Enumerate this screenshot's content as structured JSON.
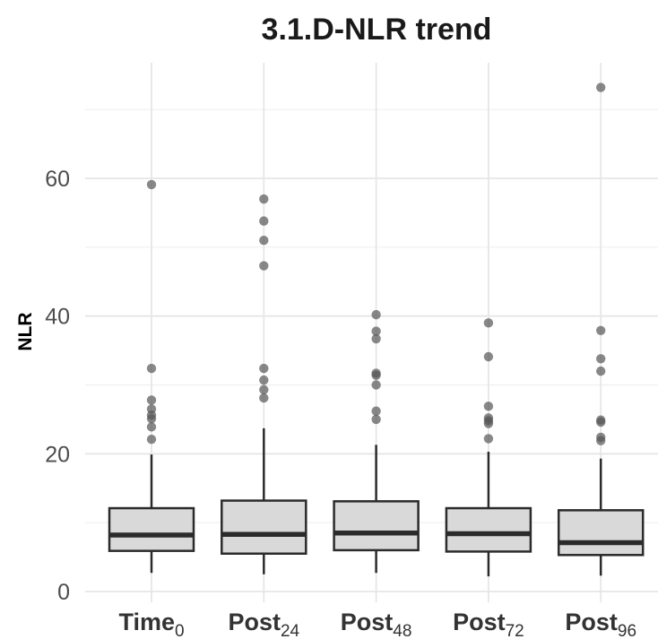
{
  "chart_data": {
    "type": "box",
    "title": "3.1.D-NLR trend",
    "xlabel": "",
    "ylabel": "NLR",
    "ylim": [
      -0.5,
      76
    ],
    "yticks": [
      0,
      20,
      40,
      60
    ],
    "grid": true,
    "colors": {
      "box_fill": "#d9d9d9",
      "box_stroke": "#2b2b2b",
      "outlier": "#555555",
      "grid": "#e6e6e6"
    },
    "categories": [
      {
        "main": "Time",
        "sub": "0"
      },
      {
        "main": "Post",
        "sub": "24"
      },
      {
        "main": "Post",
        "sub": "48"
      },
      {
        "main": "Post",
        "sub": "72"
      },
      {
        "main": "Post",
        "sub": "96"
      }
    ],
    "boxes": [
      {
        "whisker_low": 2.7,
        "q1": 5.9,
        "median": 8.2,
        "q3": 12.1,
        "whisker_high": 19.9,
        "outliers": [
          59.1,
          32.4,
          27.8,
          26.5,
          25.6,
          25.1,
          23.9,
          22.1
        ]
      },
      {
        "whisker_low": 2.5,
        "q1": 5.5,
        "median": 8.3,
        "q3": 13.2,
        "whisker_high": 23.7,
        "outliers": [
          57.0,
          53.8,
          51.0,
          47.3,
          32.4,
          30.7,
          29.3,
          28.1
        ]
      },
      {
        "whisker_low": 2.7,
        "q1": 6.0,
        "median": 8.5,
        "q3": 13.1,
        "whisker_high": 21.3,
        "outliers": [
          40.2,
          37.8,
          36.7,
          31.7,
          31.4,
          30.0,
          26.2,
          25.0
        ]
      },
      {
        "whisker_low": 2.2,
        "q1": 5.8,
        "median": 8.4,
        "q3": 12.1,
        "whisker_high": 20.3,
        "outliers": [
          39.0,
          34.1,
          26.9,
          25.2,
          24.8,
          24.4,
          22.2
        ]
      },
      {
        "whisker_low": 2.3,
        "q1": 5.3,
        "median": 7.1,
        "q3": 11.8,
        "whisker_high": 19.3,
        "outliers": [
          73.2,
          37.9,
          33.8,
          32.0,
          24.9,
          24.6,
          22.4,
          21.9
        ]
      }
    ]
  }
}
